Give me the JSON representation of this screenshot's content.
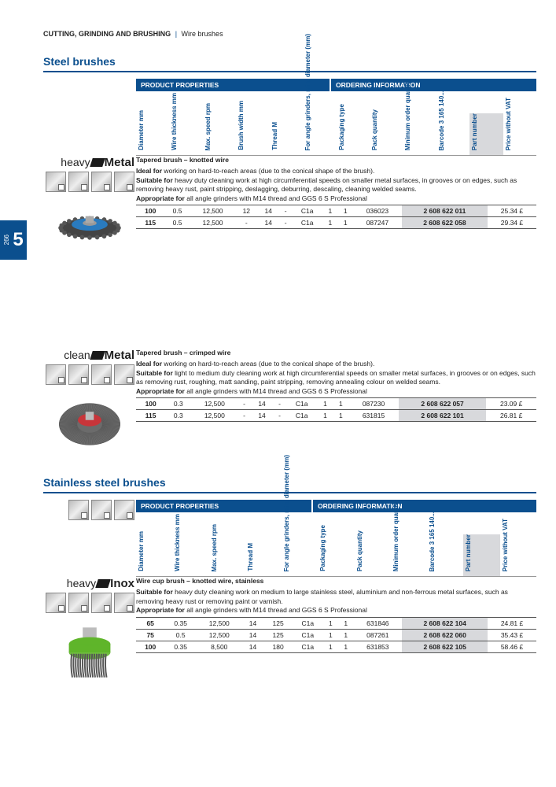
{
  "page": {
    "number": "266",
    "chapter": "5"
  },
  "breadcrumb": {
    "main": "CUTTING, GRINDING AND BRUSHING",
    "sub": "Wire brushes"
  },
  "steel": {
    "title": "Steel brushes",
    "header_left": "PRODUCT PROPERTIES",
    "header_right": "ORDERING INFORMATION",
    "columns": [
      "Diameter mm",
      "Wire thickness mm",
      "Max. speed rpm",
      "Brush width mm",
      "Thread M",
      "For angle grinders, min. diameter (mm)",
      "Packaging type",
      "Pack quantity",
      "Minimum order quantity",
      "Barcode 3 165 140...",
      "Part number",
      "Price without VAT"
    ],
    "products": [
      {
        "brand_light": "heavy",
        "brand_bold": "Metal",
        "title": "Tapered brush – knotted wire",
        "ideal": "Ideal for working on hard-to-reach areas (due to the conical shape of the brush).",
        "suitable": "Suitable for heavy duty cleaning work at high circumferential speeds on smaller metal surfaces, in grooves or on edges, such as removing heavy rust, paint stripping, deslagging, deburring, descaling, cleaning welded seams.",
        "appropriate": "Appropriate for all angle grinders with M14 thread and GGS 6 S Professional",
        "rows": [
          [
            "100",
            "0.5",
            "12,500",
            "12",
            "14",
            "-",
            "C1a",
            "1",
            "1",
            "036023",
            "2 608 622 011",
            "25.34 £"
          ],
          [
            "115",
            "0.5",
            "12,500",
            "-",
            "14",
            "-",
            "C1a",
            "1",
            "1",
            "087247",
            "2 608 622 058",
            "29.34 £"
          ]
        ],
        "img_color": "#2a7bbf"
      },
      {
        "brand_light": "clean",
        "brand_bold": "Metal",
        "title": "Tapered brush – crimped wire",
        "ideal": "Ideal for working on hard-to-reach areas (due to the conical shape of the brush).",
        "suitable": "Suitable for light to medium duty cleaning work at high circumferential speeds on smaller metal surfaces, in grooves or on edges, such as removing rust, roughing, matt sanding, paint stripping, removing annealing colour on welded seams.",
        "appropriate": "Appropriate for all angle grinders with M14 thread and GGS 6 S Professional",
        "rows": [
          [
            "100",
            "0.3",
            "12,500",
            "-",
            "14",
            "-",
            "C1a",
            "1",
            "1",
            "087230",
            "2 608 622 057",
            "23.09 £"
          ],
          [
            "115",
            "0.3",
            "12,500",
            "-",
            "14",
            "-",
            "C1a",
            "1",
            "1",
            "631815",
            "2 608 622 101",
            "26.81 £"
          ]
        ],
        "img_color": "#c8353a"
      }
    ]
  },
  "stainless": {
    "title": "Stainless steel brushes",
    "header_left": "PRODUCT PROPERTIES",
    "header_right": "ORDERING INFORMATION",
    "columns": [
      "Diameter mm",
      "Wire thickness mm",
      "Max. speed rpm",
      "Thread M",
      "For angle grinders, min. diameter (mm)",
      "Packaging type",
      "Pack quantity",
      "Minimum order quantity",
      "Barcode 3 165 140...",
      "Part number",
      "Price without VAT"
    ],
    "products": [
      {
        "brand_light": "heavy",
        "brand_bold": "Inox",
        "title": "Wire cup brush – knotted wire, stainless",
        "suitable": "Suitable for heavy duty cleaning work on medium to large stainless steel, aluminium and non-ferrous metal surfaces, such as removing heavy rust or removing paint or varnish.",
        "appropriate": "Appropriate for all angle grinders with M14 thread and GGS 6 S Professional",
        "rows": [
          [
            "65",
            "0.35",
            "12,500",
            "14",
            "125",
            "C1a",
            "1",
            "1",
            "631846",
            "2 608 622 104",
            "24.81 £"
          ],
          [
            "75",
            "0.5",
            "12,500",
            "14",
            "125",
            "C1a",
            "1",
            "1",
            "087261",
            "2 608 622 060",
            "35.43 £"
          ],
          [
            "100",
            "0.35",
            "8,500",
            "14",
            "180",
            "C1a",
            "1",
            "1",
            "631853",
            "2 608 622 105",
            "58.46 £"
          ]
        ],
        "img_color": "#5fb52a"
      }
    ]
  }
}
